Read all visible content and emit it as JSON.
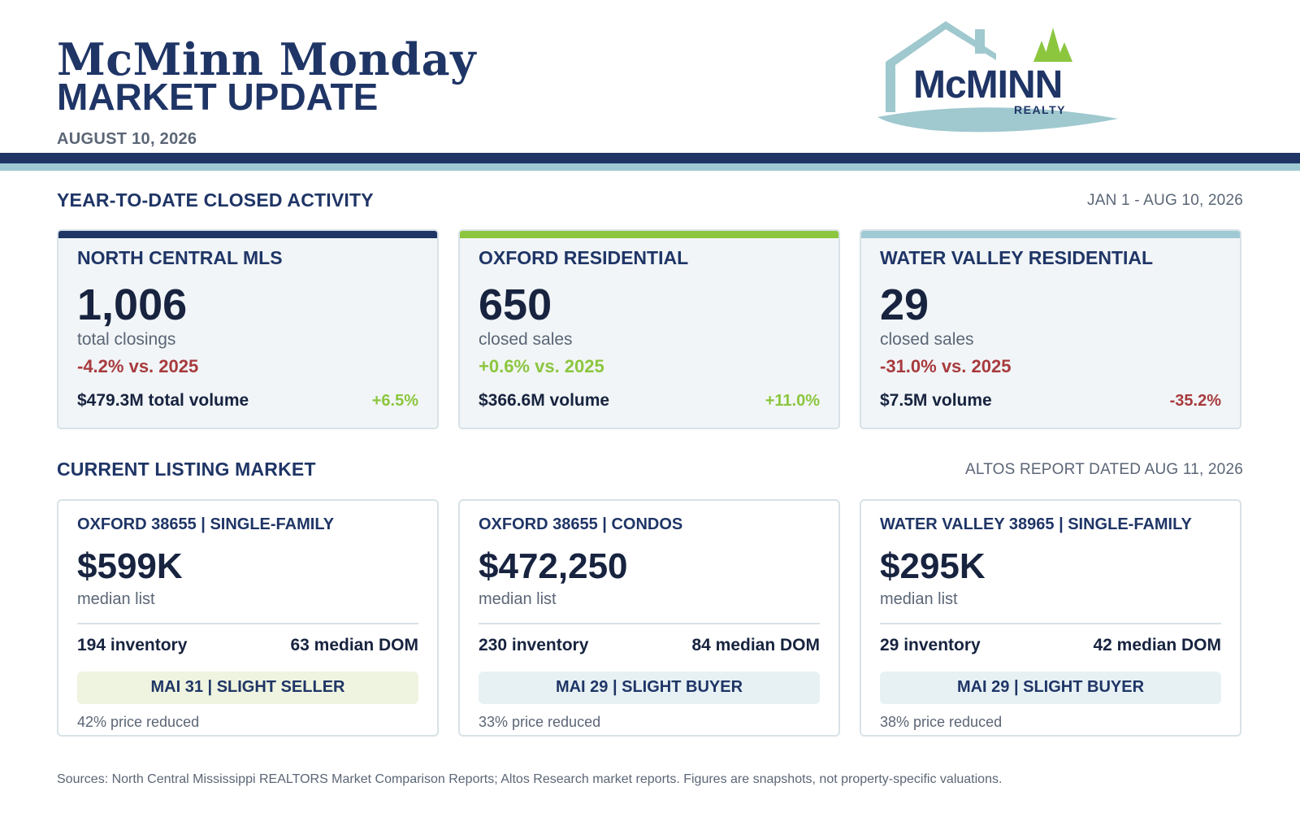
{
  "header": {
    "title_script": "McMinn Monday",
    "title_main": "MARKET UPDATE",
    "date": "AUGUST 10, 2026"
  },
  "logo": {
    "name": "McMINN",
    "sub": "REALTY",
    "colors": {
      "navy": "#1f3566",
      "teal": "#9fc8cf",
      "green": "#8cc63f"
    }
  },
  "colors": {
    "navy": "#1f3566",
    "light_teal": "#9fcad4",
    "green": "#8cc63f",
    "red": "#a83a3d",
    "gray": "#5b6676"
  },
  "ytd": {
    "title": "YEAR-TO-DATE CLOSED ACTIVITY",
    "range": "JAN 1 - AUG 10, 2026",
    "cards": [
      {
        "title": "NORTH CENTRAL MLS",
        "value": "1,006",
        "unit": "total closings",
        "change": "-4.2% vs. 2025",
        "volume": "$479.3M total volume",
        "volume_change": "+6.5%",
        "accent": "#1f3566"
      },
      {
        "title": "OXFORD RESIDENTIAL",
        "value": "650",
        "unit": "closed sales",
        "change": "+0.6% vs. 2025",
        "volume": "$366.6M volume",
        "volume_change": "+11.0%",
        "accent": "#8cc63f"
      },
      {
        "title": "WATER VALLEY RESIDENTIAL",
        "value": "29",
        "unit": "closed sales",
        "change": "-31.0% vs. 2025",
        "volume": "$7.5M volume",
        "volume_change": "-35.2%",
        "accent": "#9fcad4"
      }
    ]
  },
  "listing": {
    "title": "CURRENT LISTING MARKET",
    "source_date": "ALTOS REPORT DATED AUG 11, 2026",
    "cards": [
      {
        "title": "OXFORD 38655 | SINGLE-FAMILY",
        "value": "$599K",
        "unit": "median list",
        "inventory": "194 inventory",
        "dom": "63 median DOM",
        "mai": "MAI 31 | SLIGHT SELLER",
        "reduced": "42% price reduced"
      },
      {
        "title": "OXFORD 38655 | CONDOS",
        "value": "$472,250",
        "unit": "median list",
        "inventory": "230 inventory",
        "dom": "84 median DOM",
        "mai": "MAI 29 | SLIGHT BUYER",
        "reduced": "33% price reduced"
      },
      {
        "title": "WATER VALLEY 38965 | SINGLE-FAMILY",
        "value": "$295K",
        "unit": "median list",
        "inventory": "29 inventory",
        "dom": "42 median DOM",
        "mai": "MAI 29 | SLIGHT BUYER",
        "reduced": "38% price reduced"
      }
    ]
  },
  "footer": {
    "sources": "Sources: North Central Mississippi REALTORS Market Comparison Reports; Altos Research market reports. Figures are snapshots, not property-specific valuations."
  }
}
